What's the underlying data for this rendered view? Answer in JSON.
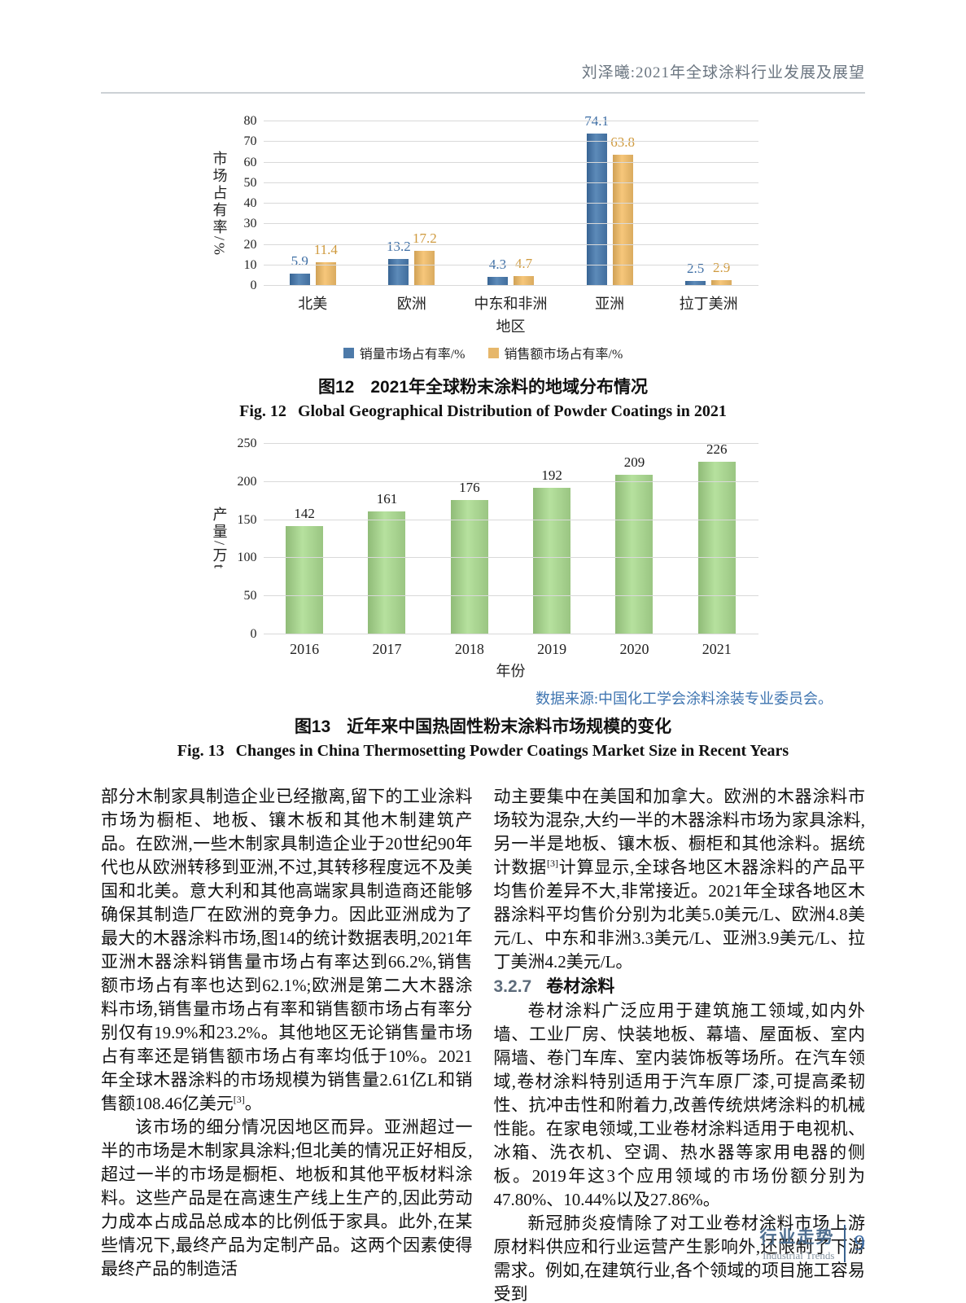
{
  "header": {
    "running_title": "刘泽曦:2021年全球涂料行业发展及展望"
  },
  "colors": {
    "fig12_volume_bar": "#4d7aa9",
    "fig12_volume_label": "#3f6fa5",
    "fig12_value_bar": "#e6b76b",
    "fig12_value_label": "#cf9a3e",
    "fig13_bar": "#a6d18e",
    "source_note_blue": "#3e74b0",
    "section_number_gray": "#5d6b7a",
    "footer_blue": "#4e6e8f",
    "page_number_blue": "#3e6da6"
  },
  "chart_data": [
    {
      "type": "bar",
      "categories": [
        "北美",
        "欧洲",
        "中东和非洲",
        "亚洲",
        "拉丁美洲"
      ],
      "series": [
        {
          "name": "销量市场占有率/%",
          "color": "#4d7aa9",
          "label_color": "#3f6fa5",
          "values": [
            5.9,
            13.2,
            4.3,
            74.1,
            2.5
          ]
        },
        {
          "name": "销售额市场占有率/%",
          "color": "#e6b76b",
          "label_color": "#cf9a3e",
          "values": [
            11.4,
            17.2,
            4.7,
            63.8,
            2.9
          ]
        }
      ],
      "ylabel": "市场占有率/%",
      "xlabel": "地区",
      "ylim": [
        0,
        80
      ],
      "ytick_step": 10,
      "grid": true,
      "legend_position": "bottom",
      "caption_cn_label": "图12",
      "caption_cn_text": "2021年全球粉末涂料的地域分布情况",
      "caption_en_label": "Fig. 12",
      "caption_en_text": "Global Geographical Distribution of Powder Coatings in 2021"
    },
    {
      "type": "bar",
      "categories": [
        "2016",
        "2017",
        "2018",
        "2019",
        "2020",
        "2021"
      ],
      "values": [
        142,
        161,
        176,
        192,
        209,
        226
      ],
      "bar_color": "#a6d18e",
      "value_label_color": "#1a1a1a",
      "ylabel": "产量/万t",
      "xlabel": "年份",
      "ylim": [
        0,
        250
      ],
      "ytick_step": 50,
      "grid": true,
      "source_note": "数据来源:中国化工学会涂料涂装专业委员会。",
      "caption_cn_label": "图13",
      "caption_cn_text": "近年来中国热固性粉末涂料市场规模的变化",
      "caption_en_label": "Fig. 13",
      "caption_en_text": "Changes in China Thermosetting Powder Coatings Market Size in Recent Years"
    }
  ],
  "body": {
    "left": {
      "p1_pre": "部分木制家具制造企业已经撤离,留下的工业涂料市场为橱柜、地板、镶木板和其他木制建筑产品。在欧洲,一些木制家具制造企业于20世纪90年代也从欧洲转移到亚洲,不过,其转移程度远不及美国和北美。意大利和其他高端家具制造商还能够确保其制造厂在欧洲的竞争力。因此亚洲成为了最大的木器涂料市场,图14的统计数据表明,2021年亚洲木器涂料销售量市场占有率达到66.2%,销售额市场占有率也达到62.1%;欧洲是第二大木器涂料市场,销售量市场占有率和销售额市场占有率分别仅有19.9%和23.2%。其他地区无论销售量市场占有率还是销售额市场占有率均低于10%。2021年全球木器涂料的市场规模为销售量2.61亿L和销售额108.46亿美元",
      "p1_sup": "[3]",
      "p1_post": "。",
      "p2": "该市场的细分情况因地区而异。亚洲超过一半的市场是木制家具涂料;但北美的情况正好相反,超过一半的市场是橱柜、地板和其他平板材料涂料。这些产品是在高速生产线上生产的,因此劳动力成本占成品总成本的比例低于家具。此外,在某些情况下,最终产品为定制产品。这两个因素使得最终产品的制造活"
    },
    "right": {
      "p1_pre": "动主要集中在美国和加拿大。欧洲的木器涂料市场较为混杂,大约一半的木器涂料市场为家具涂料,另一半是地板、镶木板、橱柜和其他涂料。据统计数据",
      "p1_sup": "[3]",
      "p1_post": "计算显示,全球各地区木器涂料的产品平均售价差异不大,非常接近。2021年全球各地区木器涂料平均售价分别为北美5.0美元/L、欧洲4.8美元/L、中东和非洲3.3美元/L、亚洲3.9美元/L、拉丁美洲4.2美元/L。",
      "heading_number": "3.2.7",
      "heading_title": "卷材涂料",
      "p2": "卷材涂料广泛应用于建筑施工领域,如内外墙、工业厂房、快装地板、幕墙、屋面板、室内隔墙、卷门车库、室内装饰板等场所。在汽车领域,卷材涂料特别适用于汽车原厂漆,可提高柔韧性、抗冲击性和附着力,改善传统烘烤涂料的机械性能。在家电领域,工业卷材涂料适用于电视机、冰箱、洗衣机、空调、热水器等家用电器的侧板。2019年这3个应用领域的市场份额分别为47.80%、10.44%以及27.86%。",
      "p3": "新冠肺炎疫情除了对工业卷材涂料市场上游原材料供应和行业运营产生影响外,还限制了下游需求。例如,在建筑行业,各个领域的项目施工容易受到"
    }
  },
  "footer": {
    "section_cn": "行业走势",
    "section_en": "Industrial Trends",
    "page_number": "9"
  }
}
